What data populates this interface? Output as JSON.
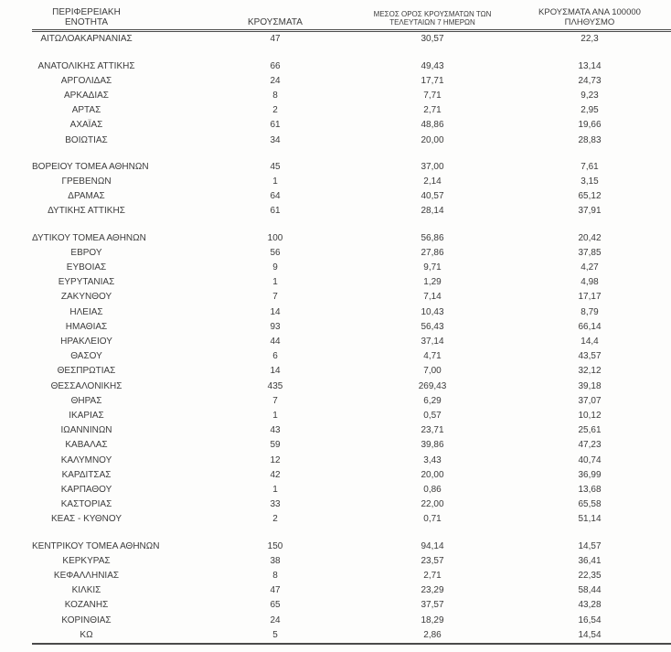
{
  "page": {
    "background": "#fdfdfc",
    "text_color": "#3b3b3b",
    "rule_color": "#4a4a4a"
  },
  "table": {
    "headers": [
      "ΠΕΡΙΦΕΡΕΙΑΚΗ ΕΝΟΤΗΤΑ",
      "ΚΡΟΥΣΜΑΤΑ",
      "ΜΕΣΟΣ ΟΡΟΣ ΚΡΟΥΣΜΑΤΩΝ ΤΩΝ\nΤΕΛΕΥΤΑΙΩΝ 7 ΗΜΕΡΩΝ",
      "ΚΡΟΥΣΜΑΤΑ ΑΝΑ 100000\nΠΛΗΘΥΣΜΟ"
    ],
    "groups": [
      {
        "rows": [
          [
            "ΑΙΤΩΛΟΑΚΑΡΝΑΝΙΑΣ",
            "47",
            "30,57",
            "22,3"
          ]
        ]
      },
      {
        "rows": [
          [
            "ΑΝΑΤΟΛΙΚΗΣ ΑΤΤΙΚΗΣ",
            "66",
            "49,43",
            "13,14"
          ],
          [
            "ΑΡΓΟΛΙΔΑΣ",
            "24",
            "17,71",
            "24,73"
          ],
          [
            "ΑΡΚΑΔΙΑΣ",
            "8",
            "7,71",
            "9,23"
          ],
          [
            "ΑΡΤΑΣ",
            "2",
            "2,71",
            "2,95"
          ],
          [
            "ΑΧΑΪΑΣ",
            "61",
            "48,86",
            "19,66"
          ],
          [
            "ΒΟΙΩΤΙΑΣ",
            "34",
            "20,00",
            "28,83"
          ]
        ]
      },
      {
        "rows": [
          [
            "ΒΟΡΕΙΟΥ ΤΟΜΕΑ ΑΘΗΝΩΝ",
            "45",
            "37,00",
            "7,61"
          ],
          [
            "ΓΡΕΒΕΝΩΝ",
            "1",
            "2,14",
            "3,15"
          ],
          [
            "ΔΡΑΜΑΣ",
            "64",
            "40,57",
            "65,12"
          ],
          [
            "ΔΥΤΙΚΗΣ ΑΤΤΙΚΗΣ",
            "61",
            "28,14",
            "37,91"
          ]
        ]
      },
      {
        "rows": [
          [
            "ΔΥΤΙΚΟΥ ΤΟΜΕΑ ΑΘΗΝΩΝ",
            "100",
            "56,86",
            "20,42"
          ],
          [
            "ΕΒΡΟΥ",
            "56",
            "27,86",
            "37,85"
          ],
          [
            "ΕΥΒΟΙΑΣ",
            "9",
            "9,71",
            "4,27"
          ],
          [
            "ΕΥΡΥΤΑΝΙΑΣ",
            "1",
            "1,29",
            "4,98"
          ],
          [
            "ΖΑΚΥΝΘΟΥ",
            "7",
            "7,14",
            "17,17"
          ],
          [
            "ΗΛΕΙΑΣ",
            "14",
            "10,43",
            "8,79"
          ],
          [
            "ΗΜΑΘΙΑΣ",
            "93",
            "56,43",
            "66,14"
          ],
          [
            "ΗΡΑΚΛΕΙΟΥ",
            "44",
            "37,14",
            "14,4"
          ],
          [
            "ΘΑΣΟΥ",
            "6",
            "4,71",
            "43,57"
          ],
          [
            "ΘΕΣΠΡΩΤΙΑΣ",
            "14",
            "7,00",
            "32,12"
          ],
          [
            "ΘΕΣΣΑΛΟΝΙΚΗΣ",
            "435",
            "269,43",
            "39,18"
          ],
          [
            "ΘΗΡΑΣ",
            "7",
            "6,29",
            "37,07"
          ],
          [
            "ΙΚΑΡΙΑΣ",
            "1",
            "0,57",
            "10,12"
          ],
          [
            "ΙΩΑΝΝΙΝΩΝ",
            "43",
            "23,71",
            "25,61"
          ],
          [
            "ΚΑΒΑΛΑΣ",
            "59",
            "39,86",
            "47,23"
          ],
          [
            "ΚΑΛΥΜΝΟΥ",
            "12",
            "3,43",
            "40,74"
          ],
          [
            "ΚΑΡΔΙΤΣΑΣ",
            "42",
            "20,00",
            "36,99"
          ],
          [
            "ΚΑΡΠΑΘΟΥ",
            "1",
            "0,86",
            "13,68"
          ],
          [
            "ΚΑΣΤΟΡΙΑΣ",
            "33",
            "22,00",
            "65,58"
          ],
          [
            "ΚΕΑΣ - ΚΥΘΝΟΥ",
            "2",
            "0,71",
            "51,14"
          ]
        ]
      },
      {
        "rows": [
          [
            "ΚΕΝΤΡΙΚΟΥ ΤΟΜΕΑ ΑΘΗΝΩΝ",
            "150",
            "94,14",
            "14,57"
          ],
          [
            "ΚΕΡΚΥΡΑΣ",
            "38",
            "23,57",
            "36,41"
          ],
          [
            "ΚΕΦΑΛΛΗΝΙΑΣ",
            "8",
            "2,71",
            "22,35"
          ],
          [
            "ΚΙΛΚΙΣ",
            "47",
            "23,29",
            "58,44"
          ],
          [
            "ΚΟΖΑΝΗΣ",
            "65",
            "37,57",
            "43,28"
          ],
          [
            "ΚΟΡΙΝΘΙΑΣ",
            "24",
            "18,29",
            "16,54"
          ],
          [
            "ΚΩ",
            "5",
            "2,86",
            "14,54"
          ]
        ]
      }
    ]
  }
}
